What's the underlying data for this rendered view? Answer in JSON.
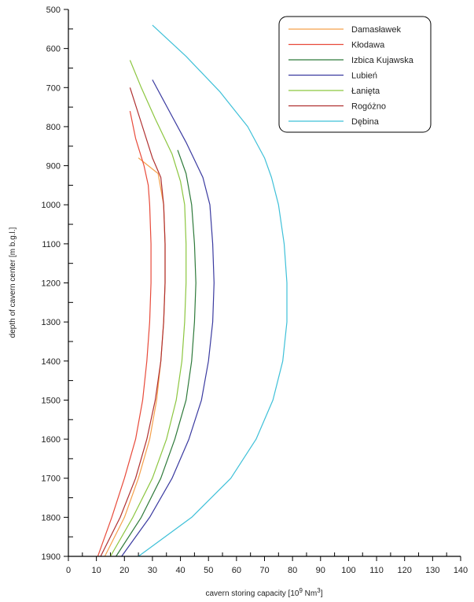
{
  "chart_data": {
    "type": "line",
    "title": "",
    "xlabel": "cavern storing capacity  [10",
    "xlabel_exp1": "9",
    "xlabel_mid": " Nm",
    "xlabel_exp2": "3",
    "xlabel_end": "]",
    "ylabel": "depth of cavern center [m b.g.l.]",
    "xlim": [
      0,
      140
    ],
    "ylim": [
      500,
      1900
    ],
    "y_inverted": true,
    "x_ticks": [
      0,
      10,
      20,
      30,
      40,
      50,
      60,
      70,
      80,
      90,
      100,
      110,
      120,
      130,
      140
    ],
    "y_ticks": [
      500,
      600,
      700,
      800,
      900,
      1000,
      1100,
      1200,
      1300,
      1400,
      1500,
      1600,
      1700,
      1800,
      1900
    ],
    "legend_position": "top-right",
    "series": [
      {
        "name": "Damasławek",
        "color": "#f5a04a",
        "points": [
          [
            25,
            880
          ],
          [
            32,
            920
          ],
          [
            34,
            1000
          ],
          [
            34.5,
            1100
          ],
          [
            34.5,
            1200
          ],
          [
            34,
            1300
          ],
          [
            33,
            1400
          ],
          [
            31.5,
            1500
          ],
          [
            29,
            1600
          ],
          [
            25,
            1700
          ],
          [
            20,
            1800
          ],
          [
            13,
            1900
          ]
        ]
      },
      {
        "name": "Kłodawa",
        "color": "#e84a3a",
        "points": [
          [
            22,
            760
          ],
          [
            24,
            830
          ],
          [
            27,
            900
          ],
          [
            28.5,
            950
          ],
          [
            29,
            1000
          ],
          [
            29.5,
            1100
          ],
          [
            29.5,
            1200
          ],
          [
            29,
            1300
          ],
          [
            28,
            1400
          ],
          [
            26.5,
            1500
          ],
          [
            24,
            1600
          ],
          [
            20,
            1700
          ],
          [
            15.5,
            1800
          ],
          [
            10.5,
            1900
          ]
        ]
      },
      {
        "name": "Izbica Kujawska",
        "color": "#2e7a3a",
        "points": [
          [
            39,
            860
          ],
          [
            42,
            920
          ],
          [
            44,
            1000
          ],
          [
            45,
            1100
          ],
          [
            45.5,
            1200
          ],
          [
            45,
            1300
          ],
          [
            44,
            1400
          ],
          [
            42,
            1500
          ],
          [
            38,
            1600
          ],
          [
            33,
            1700
          ],
          [
            26,
            1800
          ],
          [
            17,
            1900
          ]
        ]
      },
      {
        "name": "Lubień",
        "color": "#3a3aa0",
        "points": [
          [
            30,
            680
          ],
          [
            36,
            760
          ],
          [
            42,
            840
          ],
          [
            48,
            930
          ],
          [
            50.5,
            1000
          ],
          [
            51.5,
            1100
          ],
          [
            52,
            1200
          ],
          [
            51.5,
            1300
          ],
          [
            50,
            1400
          ],
          [
            47.5,
            1500
          ],
          [
            43,
            1600
          ],
          [
            37,
            1700
          ],
          [
            29,
            1800
          ],
          [
            19,
            1900
          ]
        ]
      },
      {
        "name": "Łanięta",
        "color": "#8cc63f",
        "points": [
          [
            22,
            630
          ],
          [
            26,
            700
          ],
          [
            31,
            780
          ],
          [
            37,
            870
          ],
          [
            40,
            940
          ],
          [
            41.5,
            1000
          ],
          [
            42,
            1100
          ],
          [
            42,
            1200
          ],
          [
            41.5,
            1300
          ],
          [
            40.5,
            1400
          ],
          [
            38.5,
            1500
          ],
          [
            35,
            1600
          ],
          [
            30,
            1700
          ],
          [
            23,
            1800
          ],
          [
            15,
            1900
          ]
        ]
      },
      {
        "name": "Rogóżno",
        "color": "#b03030",
        "points": [
          [
            22,
            700
          ],
          [
            26,
            790
          ],
          [
            30,
            880
          ],
          [
            33,
            930
          ],
          [
            34,
            1000
          ],
          [
            34.5,
            1100
          ],
          [
            34.5,
            1200
          ],
          [
            34,
            1300
          ],
          [
            33,
            1400
          ],
          [
            31,
            1500
          ],
          [
            28,
            1600
          ],
          [
            24,
            1700
          ],
          [
            18.5,
            1800
          ],
          [
            11.5,
            1900
          ]
        ]
      },
      {
        "name": "Dębina",
        "color": "#3ec0d8",
        "points": [
          [
            30,
            540
          ],
          [
            42,
            620
          ],
          [
            54,
            710
          ],
          [
            64,
            800
          ],
          [
            70,
            880
          ],
          [
            72.5,
            930
          ],
          [
            75,
            1000
          ],
          [
            77,
            1100
          ],
          [
            78,
            1200
          ],
          [
            78,
            1300
          ],
          [
            76.5,
            1400
          ],
          [
            73,
            1500
          ],
          [
            67,
            1600
          ],
          [
            58,
            1700
          ],
          [
            44,
            1800
          ],
          [
            25,
            1900
          ]
        ]
      }
    ]
  }
}
